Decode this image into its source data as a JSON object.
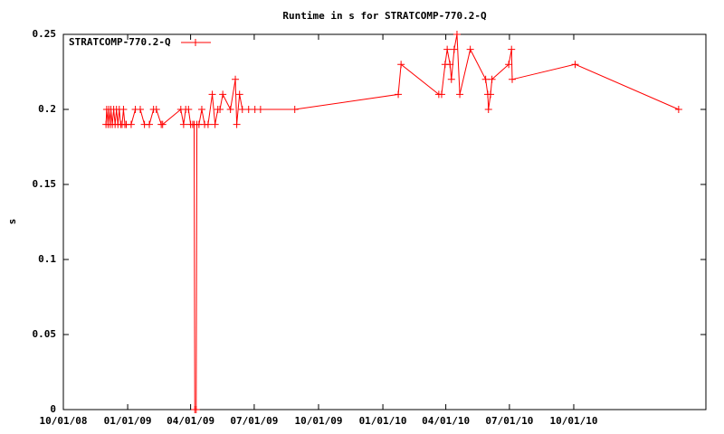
{
  "chart_data": {
    "type": "line",
    "title": "Runtime in s for STRATCOMP-770.2-Q",
    "y_label": "s",
    "legend": "top-left",
    "x": [
      "2008-12-01",
      "2008-12-02",
      "2008-12-04",
      "2008-12-05",
      "2008-12-07",
      "2008-12-08",
      "2008-12-10",
      "2008-12-12",
      "2008-12-14",
      "2008-12-16",
      "2008-12-18",
      "2008-12-20",
      "2008-12-22",
      "2008-12-24",
      "2008-12-26",
      "2008-12-28",
      "2008-12-30",
      "2009-01-06",
      "2009-01-12",
      "2009-01-19",
      "2009-01-25",
      "2009-02-01",
      "2009-02-07",
      "2009-02-11",
      "2009-02-18",
      "2009-02-20",
      "2009-03-18",
      "2009-03-22",
      "2009-03-25",
      "2009-03-29",
      "2009-04-01",
      "2009-04-04",
      "2009-04-06",
      "2009-04-07",
      "2009-04-09",
      "2009-04-10",
      "2009-04-13",
      "2009-04-17",
      "2009-04-21",
      "2009-04-26",
      "2009-05-02",
      "2009-05-06",
      "2009-05-10",
      "2009-05-13",
      "2009-05-17",
      "2009-05-28",
      "2009-06-04",
      "2009-06-06",
      "2009-06-10",
      "2009-06-14",
      "2009-06-23",
      "2009-07-02",
      "2009-07-10",
      "2009-08-28",
      "2010-01-23",
      "2010-01-27",
      "2010-03-22",
      "2010-03-26",
      "2010-03-31",
      "2010-04-03",
      "2010-04-07",
      "2010-04-09",
      "2010-04-13",
      "2010-04-17",
      "2010-04-21",
      "2010-05-06",
      "2010-05-28",
      "2010-05-31",
      "2010-06-01",
      "2010-06-04",
      "2010-06-06",
      "2010-06-30",
      "2010-07-04",
      "2010-07-05",
      "2010-10-03",
      "2011-02-28"
    ],
    "series": [
      {
        "name": "STRATCOMP-770.2-Q",
        "color": "#ff0000",
        "values": [
          0.19,
          0.2,
          0.19,
          0.2,
          0.19,
          0.2,
          0.19,
          0.2,
          0.19,
          0.2,
          0.19,
          0.2,
          0.19,
          0.19,
          0.2,
          0.19,
          0.19,
          0.19,
          0.2,
          0.2,
          0.19,
          0.19,
          0.2,
          0.2,
          0.19,
          0.19,
          0.2,
          0.19,
          0.2,
          0.2,
          0.19,
          0.19,
          0.19,
          0,
          0,
          0.19,
          0.19,
          0.2,
          0.19,
          0.19,
          0.21,
          0.19,
          0.2,
          0.2,
          0.21,
          0.2,
          0.22,
          0.19,
          0.21,
          0.2,
          0.2,
          0.2,
          0.2,
          0.2,
          0.21,
          0.23,
          0.21,
          0.21,
          0.23,
          0.24,
          0.23,
          0.22,
          0.24,
          0.25,
          0.21,
          0.24,
          0.22,
          0.21,
          0.2,
          0.21,
          0.22,
          0.23,
          0.24,
          0.22,
          0.23,
          0.2
        ]
      }
    ],
    "xlim": [
      "2008-10-01",
      "2011-04-08"
    ],
    "xticks": [
      {
        "value": "2008-10-01",
        "label": "10/01/08"
      },
      {
        "value": "2009-01-01",
        "label": "01/01/09"
      },
      {
        "value": "2009-04-01",
        "label": "04/01/09"
      },
      {
        "value": "2009-07-01",
        "label": "07/01/09"
      },
      {
        "value": "2009-10-01",
        "label": "10/01/09"
      },
      {
        "value": "2010-01-01",
        "label": "01/01/10"
      },
      {
        "value": "2010-04-01",
        "label": "04/01/10"
      },
      {
        "value": "2010-07-01",
        "label": "07/01/10"
      },
      {
        "value": "2010-10-01",
        "label": "10/01/10"
      }
    ],
    "ylim": [
      0,
      0.25
    ],
    "yticks": [
      0,
      0.05,
      0.1,
      0.15,
      0.2,
      0.25
    ]
  }
}
